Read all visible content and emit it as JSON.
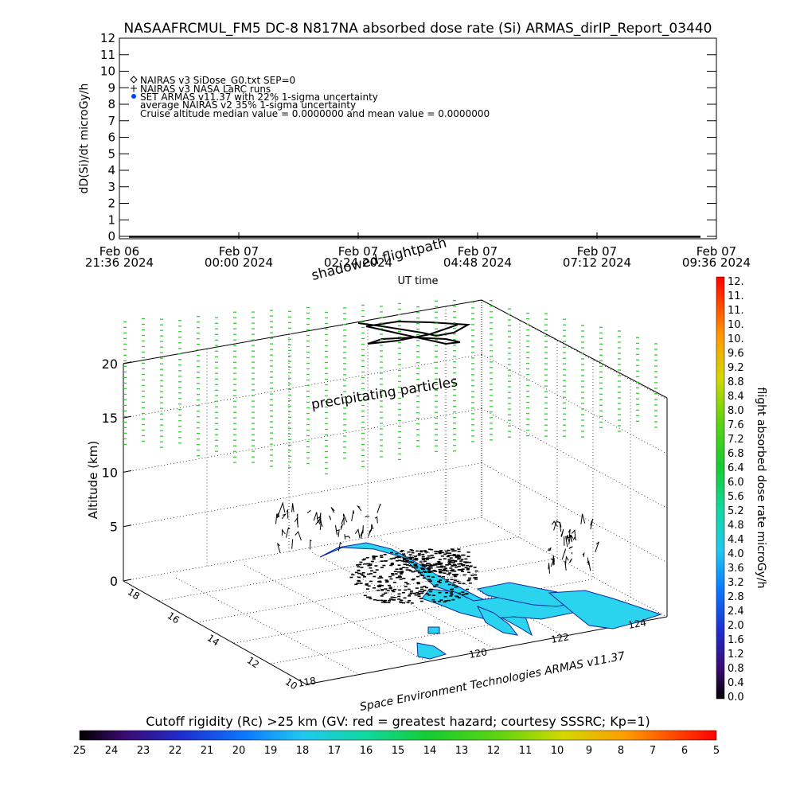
{
  "header": {
    "title": "NASAAFRCMUL_FM5 DC-8    N817NA absorbed dose rate (Si) ARMAS_dirIP_Report_03440"
  },
  "legend": {
    "lines": [
      "NAIRAS v3 SiDose_G0.txt SEP=0",
      "NAIRAS v3 NASA LaRC runs",
      "SET ARMAS v11.37 with 22% 1-sigma uncertainty",
      "average NAIRAS v2 35% 1-sigma uncertainty",
      "Cruise altitude median value = 0.0000000 and mean value = 0.0000000"
    ]
  },
  "annotations": {
    "shadowed_flightpath": "shadowed flightpath",
    "precipitating_particles": "precipitating particles",
    "credit": "Space Environment Technologies ARMAS v11.37"
  },
  "colorbar_right": {
    "label": "flight absorbed dose rate microGy/h",
    "ticks": [
      "0.0",
      "0.4",
      "0.8",
      "1.2",
      "1.6",
      "2.0",
      "2.4",
      "2.8",
      "3.2",
      "3.6",
      "4.0",
      "4.4",
      "4.8",
      "5.2",
      "5.6",
      "6.0",
      "6.4",
      "6.8",
      "7.2",
      "7.6",
      "8.0",
      "8.4",
      "8.8",
      "9.2",
      "9.6",
      "10.",
      "10.",
      "11.",
      "11.",
      "12."
    ]
  },
  "colorbar_bottom": {
    "label": "Cutoff rigidity (Rc) >25 km (GV: red = greatest hazard; courtesy SSSRC; Kp=1)",
    "ticks": [
      "25",
      "24",
      "23",
      "22",
      "21",
      "20",
      "19",
      "18",
      "17",
      "16",
      "15",
      "14",
      "13",
      "12",
      "11",
      "10",
      "9",
      "8",
      "7",
      "6",
      "5"
    ]
  },
  "colors": {
    "nairas_green": "#33cc33",
    "land_cyan": "#2bd4ee",
    "armas_blue": "#0044ff"
  },
  "chart_data": [
    {
      "type": "line",
      "ylabel": "dD(Si)/dt microGy/h",
      "xlabel": "UT time",
      "ylim": [
        0,
        12
      ],
      "yticks": [
        "0",
        "1",
        "2",
        "3",
        "4",
        "5",
        "6",
        "7",
        "8",
        "9",
        "10",
        "11",
        "12"
      ],
      "xticks": [
        {
          "l1": "Feb 06",
          "l2": "21:36 2024"
        },
        {
          "l1": "Feb 07",
          "l2": "00:00 2024"
        },
        {
          "l1": "Feb 07",
          "l2": "02:24 2024"
        },
        {
          "l1": "Feb 07",
          "l2": "04:48 2024"
        },
        {
          "l1": "Feb 07",
          "l2": "07:12 2024"
        },
        {
          "l1": "Feb 07",
          "l2": "09:36 2024"
        }
      ],
      "series": [
        {
          "name": "NAIRAS v3 SiDose_G0.txt SEP=0",
          "x_range": [
            "Feb 06 21:36 2024",
            "Feb 07 09:36 2024"
          ],
          "value": 0
        },
        {
          "name": "NAIRAS v3 NASA LaRC runs",
          "value": 0
        },
        {
          "name": "SET ARMAS v11.37 with 22% 1-sigma uncertainty",
          "value": 0
        },
        {
          "name": "average NAIRAS v2 35% 1-sigma uncertainty",
          "value": 0
        }
      ],
      "grid": false,
      "legend_position": "top-left"
    },
    {
      "type": "scatter",
      "ylabel": "Altitude (km)",
      "zlim": [
        0,
        20
      ],
      "zticks": [
        "0",
        "5",
        "10",
        "15",
        "20"
      ],
      "latitude_ticks": [
        "10",
        "12",
        "14",
        "16",
        "18"
      ],
      "longitude_ticks": [
        "118",
        "120",
        "122",
        "124"
      ],
      "grid": true
    }
  ]
}
